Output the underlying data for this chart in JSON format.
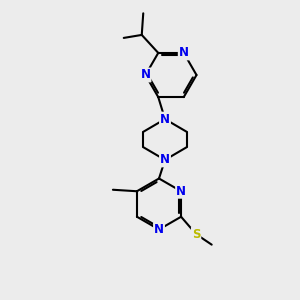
{
  "bg_color": "#ececec",
  "bond_color": "#000000",
  "N_color": "#0000ee",
  "S_color": "#bbbb00",
  "line_width": 1.5,
  "font_size": 8.5,
  "figsize": [
    3.0,
    3.0
  ],
  "dpi": 100,
  "xlim": [
    0,
    10
  ],
  "ylim": [
    0,
    10
  ]
}
